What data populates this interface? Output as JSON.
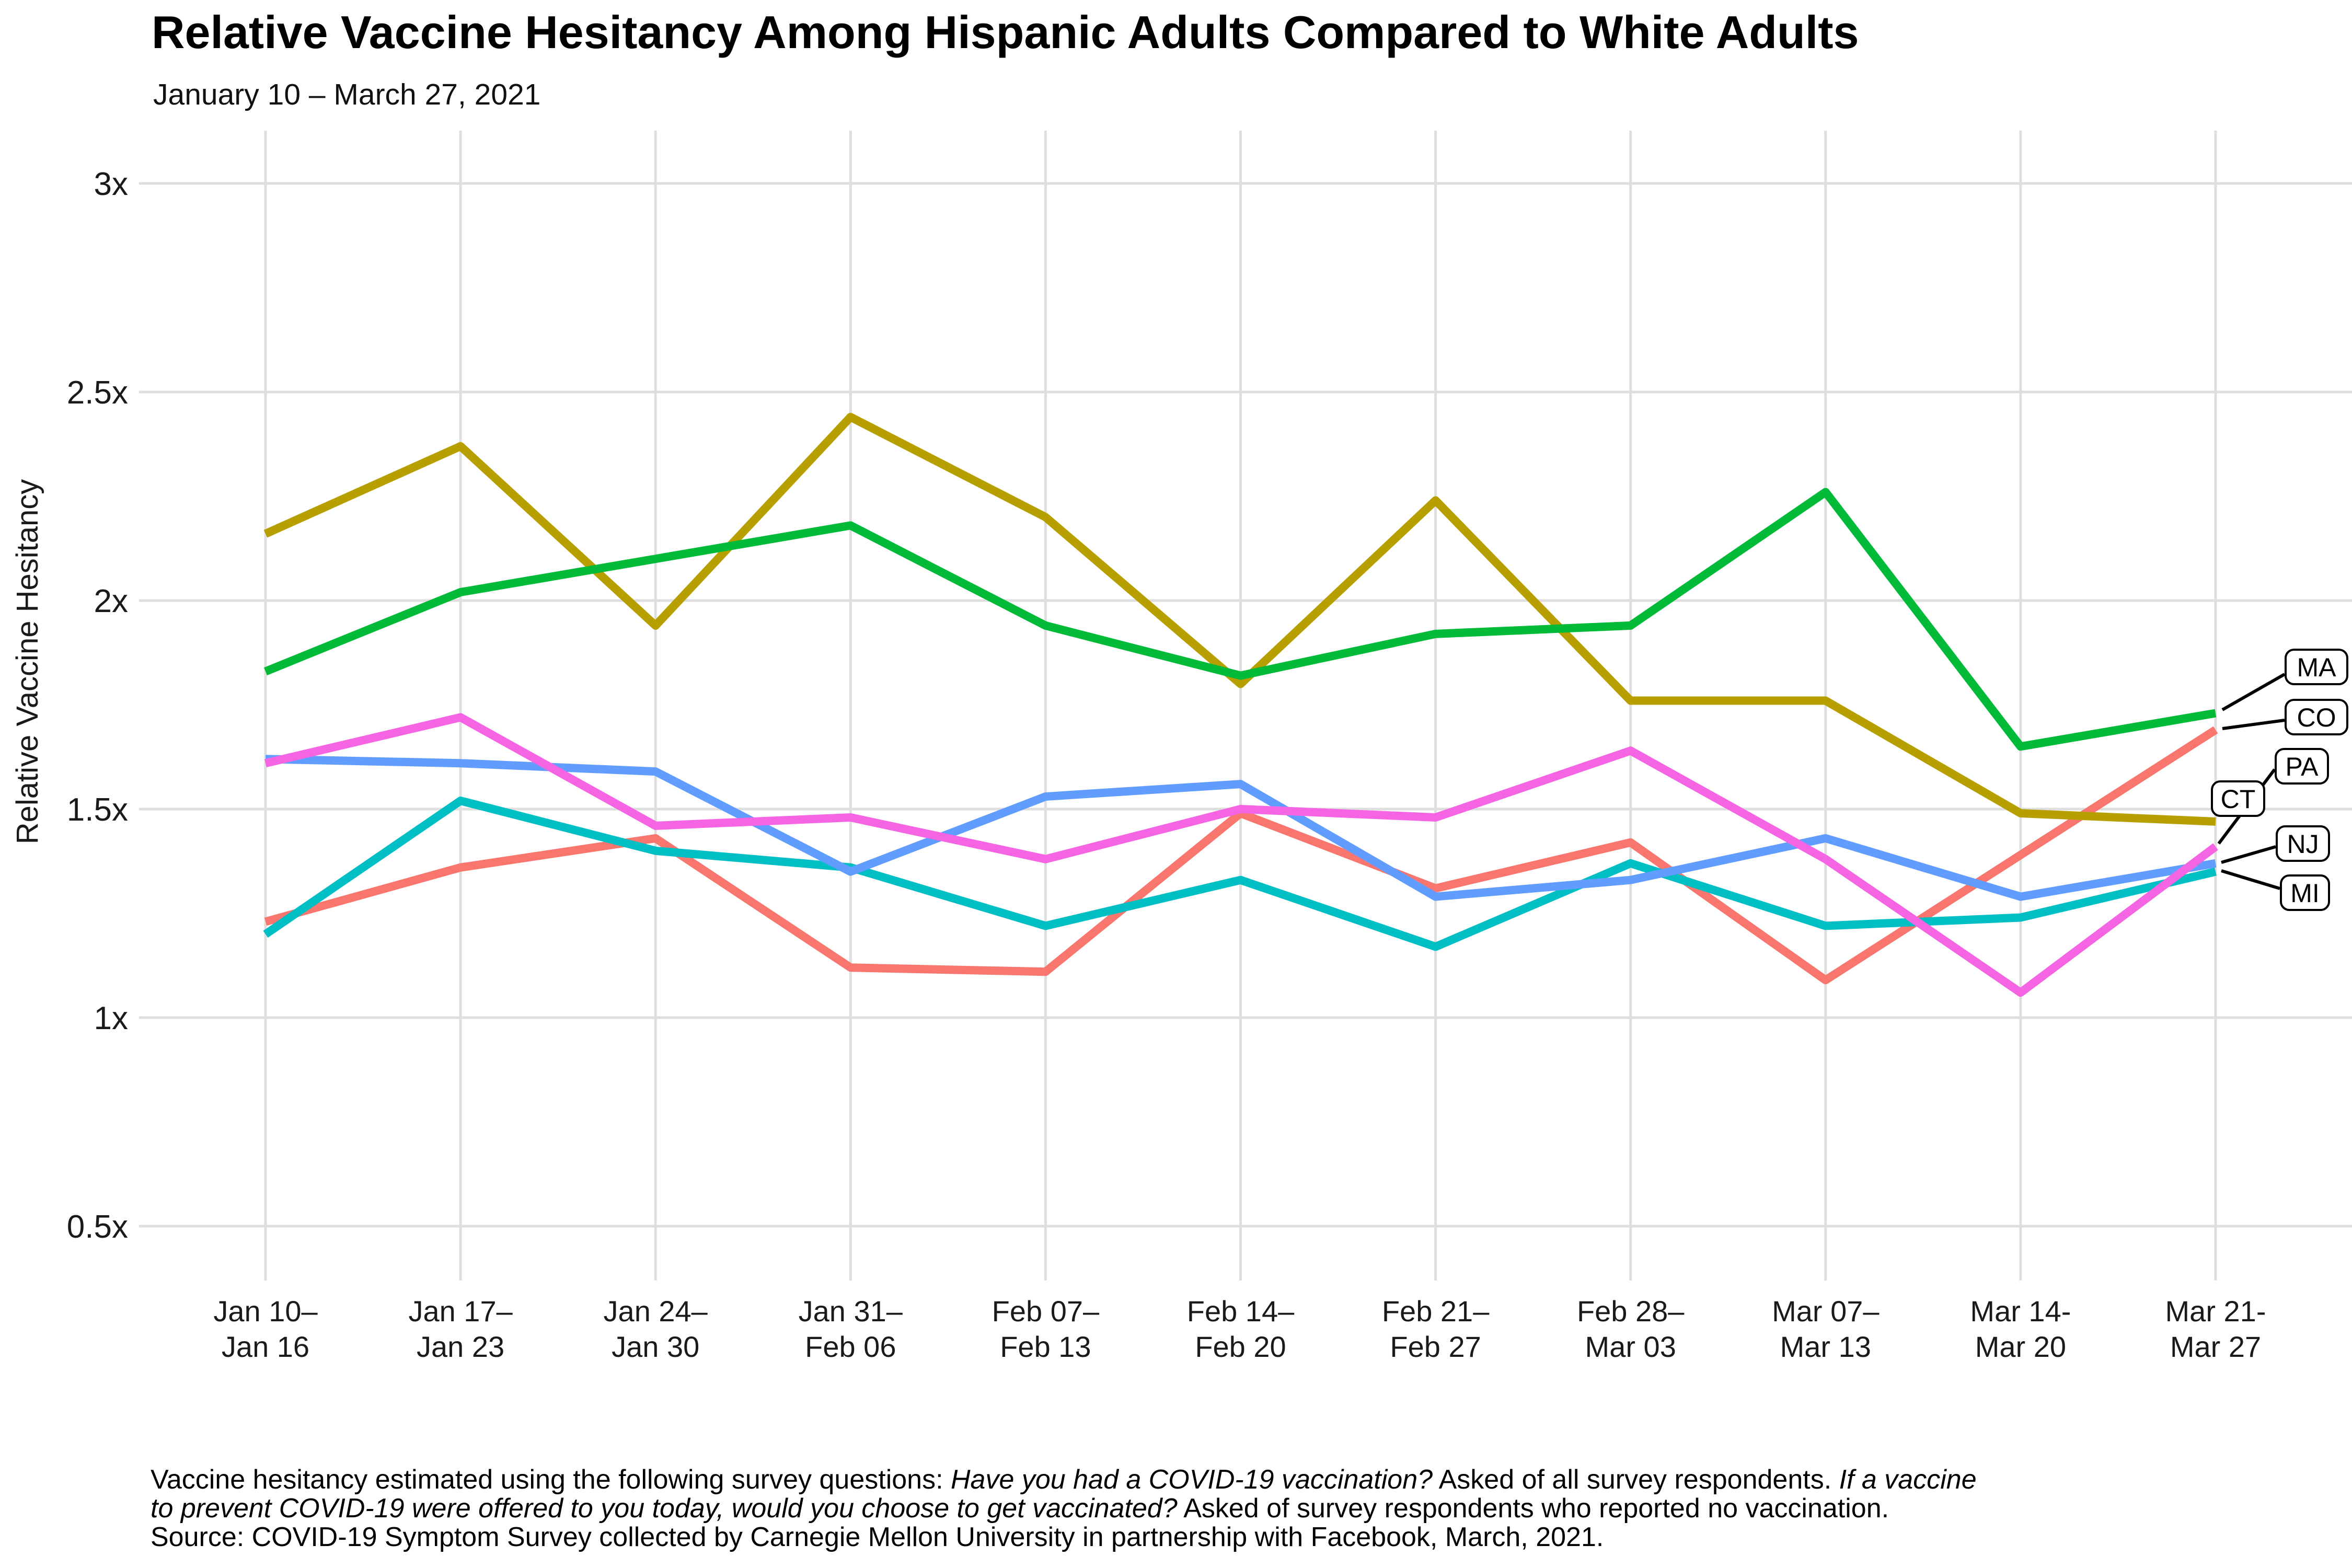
{
  "title": "Relative Vaccine Hesitancy Among Hispanic Adults Compared to White Adults",
  "subtitle": "January 10 – March 27, 2021",
  "y_axis_title": "Relative Vaccine Hesitancy",
  "chart_data": {
    "type": "line",
    "title": "Relative Vaccine Hesitancy Among Hispanic Adults Compared to White Adults",
    "subtitle": "January 10 – March 27, 2021",
    "xlabel": "",
    "ylabel": "Relative Vaccine Hesitancy",
    "ylim": [
      0.38,
      3.12
    ],
    "grid": true,
    "legend_position": "right-edge-boxed-labels",
    "yticks": [
      {
        "value": 0.5,
        "label": "0.5x"
      },
      {
        "value": 1.0,
        "label": "1x"
      },
      {
        "value": 1.5,
        "label": "1.5x"
      },
      {
        "value": 2.0,
        "label": "2x"
      },
      {
        "value": 2.5,
        "label": "2.5x"
      },
      {
        "value": 3.0,
        "label": "3x"
      }
    ],
    "categories": [
      {
        "line1": "Jan 10–",
        "line2": "Jan 16"
      },
      {
        "line1": "Jan 17–",
        "line2": "Jan 23"
      },
      {
        "line1": "Jan 24–",
        "line2": "Jan 30"
      },
      {
        "line1": "Jan 31–",
        "line2": "Feb 06"
      },
      {
        "line1": "Feb 07–",
        "line2": "Feb 13"
      },
      {
        "line1": "Feb 14–",
        "line2": "Feb 20"
      },
      {
        "line1": "Feb 21–",
        "line2": "Feb 27"
      },
      {
        "line1": "Feb 28–",
        "line2": "Mar 03"
      },
      {
        "line1": "Mar 07–",
        "line2": "Mar 13"
      },
      {
        "line1": "Mar 14-",
        "line2": "Mar 20"
      },
      {
        "line1": "Mar 21-",
        "line2": "Mar 27"
      }
    ],
    "series": [
      {
        "name": "CO",
        "color": "#F8766D",
        "values": [
          1.23,
          1.36,
          1.43,
          1.12,
          1.11,
          1.49,
          1.31,
          1.42,
          1.09,
          1.39,
          1.69
        ]
      },
      {
        "name": "CT",
        "color": "#B79F00",
        "values": [
          2.16,
          2.37,
          1.94,
          2.44,
          2.2,
          1.8,
          2.24,
          1.76,
          1.76,
          1.49,
          1.47
        ]
      },
      {
        "name": "MA",
        "color": "#00BA38",
        "values": [
          1.83,
          2.02,
          2.1,
          2.18,
          1.94,
          1.82,
          1.92,
          1.94,
          2.26,
          1.65,
          1.73
        ]
      },
      {
        "name": "MI",
        "color": "#00BFC4",
        "values": [
          1.2,
          1.52,
          1.4,
          1.36,
          1.22,
          1.33,
          1.17,
          1.37,
          1.22,
          1.24,
          1.35
        ]
      },
      {
        "name": "NJ",
        "color": "#619CFF",
        "values": [
          1.62,
          1.61,
          1.59,
          1.35,
          1.53,
          1.56,
          1.29,
          1.33,
          1.43,
          1.29,
          1.37
        ]
      },
      {
        "name": "PA",
        "color": "#F564E3",
        "values": [
          1.61,
          1.72,
          1.46,
          1.48,
          1.38,
          1.5,
          1.48,
          1.64,
          1.38,
          1.06,
          1.41
        ]
      }
    ]
  },
  "caption": {
    "lines": [
      [
        {
          "t": "Vaccine hesitancy estimated using the following survey questions: ",
          "i": false
        },
        {
          "t": "Have you had a COVID-19 vaccination?",
          "i": true
        },
        {
          "t": " Asked of all survey respondents. ",
          "i": false
        },
        {
          "t": "If a vaccine",
          "i": true
        }
      ],
      [
        {
          "t": "to prevent COVID-19 were offered to you today, would you choose to get vaccinated?",
          "i": true
        },
        {
          "t": " Asked of survey respondents who reported no vaccination.",
          "i": false
        }
      ],
      [
        {
          "t": "Source: COVID-19 Symptom Survey collected by Carnegie Mellon University in partnership with Facebook, March, 2021.",
          "i": false
        }
      ]
    ]
  },
  "colors": {
    "background": "#ffffff",
    "gridline": "#DEDEDE",
    "axis_text": "#1a1a1a",
    "leader_line": "#000000",
    "label_box_border": "#000000"
  }
}
